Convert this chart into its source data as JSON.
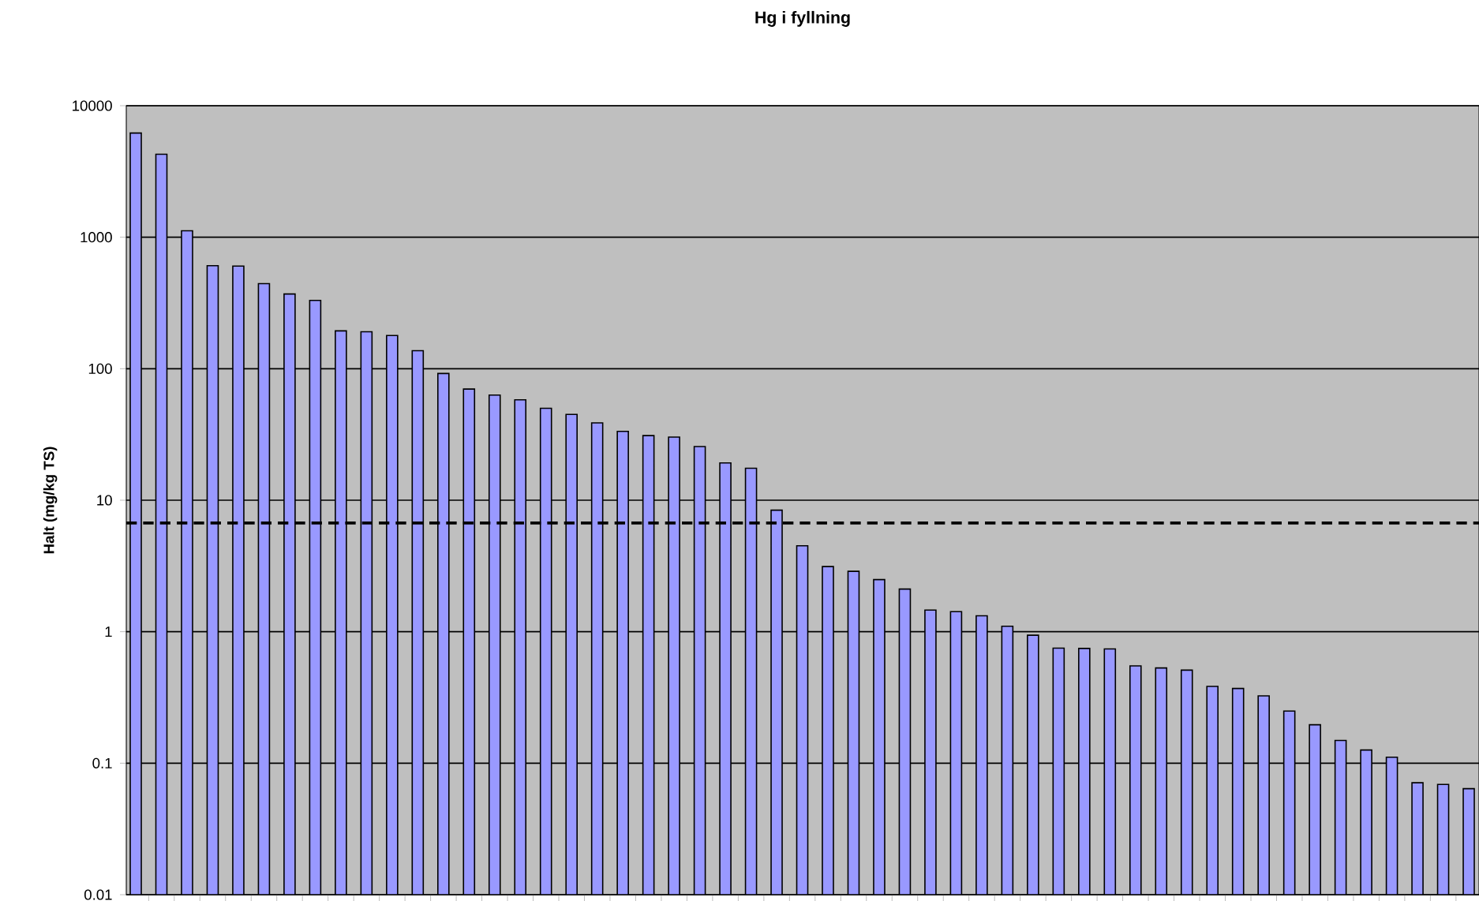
{
  "chart_data": {
    "type": "bar",
    "title": "Hg i fyllning",
    "ylabel": "Halt (mg/kg TS)",
    "categories": [
      null,
      null,
      null,
      null,
      null,
      null,
      null,
      null,
      null,
      null,
      null,
      null,
      null,
      null,
      null,
      null,
      null,
      null,
      null,
      null,
      null,
      null,
      null,
      null,
      null,
      null,
      null,
      null,
      null,
      null,
      null,
      null,
      null,
      null,
      null,
      null,
      null,
      null,
      null,
      null,
      null,
      null,
      null,
      null,
      null,
      null,
      null,
      null,
      null,
      null,
      null,
      null,
      null
    ],
    "values": [
      6200,
      4280,
      1120,
      608,
      603,
      444,
      370,
      331,
      194,
      191,
      179,
      137,
      92,
      70,
      63,
      58,
      50,
      44.9,
      38.7,
      33.4,
      31,
      30.2,
      25.6,
      19.2,
      17.5,
      8.4,
      4.5,
      3.13,
      2.88,
      2.49,
      2.11,
      1.46,
      1.42,
      1.32,
      1.1,
      0.94,
      0.75,
      0.746,
      0.74,
      0.55,
      0.53,
      0.51,
      0.384,
      0.37,
      0.325,
      0.249,
      0.196,
      0.149,
      0.126,
      0.111,
      0.071,
      0.069,
      0.064
    ],
    "color": "#9999ff",
    "log": "y",
    "ylim": [
      0.01,
      10000
    ],
    "yticks": [
      0.01,
      0.1,
      1,
      10,
      100,
      1000,
      10000
    ],
    "grid": "y",
    "ref_lines": [
      {
        "axis": "y",
        "value": 6.7,
        "color": "#000000",
        "line_style": "dashed"
      }
    ]
  }
}
